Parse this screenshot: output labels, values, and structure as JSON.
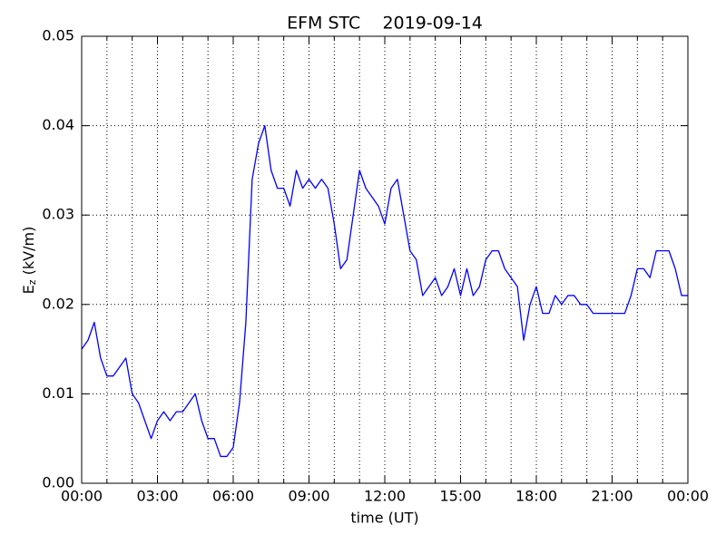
{
  "chart_data": {
    "type": "line",
    "title": "EFM STC    2019-09-14",
    "xlabel": "time (UT)",
    "ylabel": {
      "base": "E",
      "subscript": "z",
      "unit": " (kV/m)"
    },
    "color": "#0000ff",
    "grid": true,
    "xlim": [
      0,
      24
    ],
    "xticks": [
      {
        "value": 0,
        "label": "00:00"
      },
      {
        "value": 3,
        "label": "03:00"
      },
      {
        "value": 6,
        "label": "06:00"
      },
      {
        "value": 9,
        "label": "09:00"
      },
      {
        "value": 12,
        "label": "12:00"
      },
      {
        "value": 15,
        "label": "15:00"
      },
      {
        "value": 18,
        "label": "18:00"
      },
      {
        "value": 21,
        "label": "21:00"
      },
      {
        "value": 24,
        "label": "00:00"
      }
    ],
    "xminorticks": [
      1,
      2,
      4,
      5,
      7,
      8,
      10,
      11,
      13,
      14,
      16,
      17,
      19,
      20,
      22,
      23
    ],
    "ylim": [
      0,
      0.05
    ],
    "yticks": [
      {
        "value": 0,
        "label": "0.00"
      },
      0.01,
      0.02,
      0.03,
      0.04,
      0.05
    ],
    "x": [
      0,
      0.25,
      0.5,
      0.75,
      1,
      1.25,
      1.5,
      1.75,
      2,
      2.25,
      2.5,
      2.75,
      3,
      3.25,
      3.5,
      3.75,
      4,
      4.25,
      4.5,
      4.75,
      5,
      5.25,
      5.5,
      5.75,
      6,
      6.25,
      6.5,
      6.75,
      7,
      7.25,
      7.5,
      7.75,
      8,
      8.25,
      8.5,
      8.75,
      9,
      9.25,
      9.5,
      9.75,
      10,
      10.25,
      10.5,
      10.75,
      11,
      11.25,
      11.5,
      11.75,
      12,
      12.25,
      12.5,
      12.75,
      13,
      13.25,
      13.5,
      13.75,
      14,
      14.25,
      14.5,
      14.75,
      15,
      15.25,
      15.5,
      15.75,
      16,
      16.25,
      16.5,
      16.75,
      17,
      17.25,
      17.5,
      17.75,
      18,
      18.25,
      18.5,
      18.75,
      19,
      19.25,
      19.5,
      19.75,
      20,
      20.25,
      20.5,
      20.75,
      21,
      21.25,
      21.5,
      21.75,
      22,
      22.25,
      22.5,
      22.75,
      23,
      23.25,
      23.5,
      23.75,
      24
    ],
    "values": [
      0.015,
      0.016,
      0.018,
      0.014,
      0.012,
      0.012,
      0.013,
      0.014,
      0.01,
      0.009,
      0.007,
      0.005,
      0.007,
      0.008,
      0.007,
      0.008,
      0.008,
      0.009,
      0.01,
      0.007,
      0.005,
      0.005,
      0.003,
      0.003,
      0.004,
      0.009,
      0.018,
      0.034,
      0.038,
      0.04,
      0.035,
      0.033,
      0.033,
      0.031,
      0.035,
      0.033,
      0.034,
      0.033,
      0.034,
      0.033,
      0.029,
      0.024,
      0.025,
      0.03,
      0.035,
      0.033,
      0.032,
      0.031,
      0.029,
      0.033,
      0.034,
      0.03,
      0.026,
      0.025,
      0.021,
      0.022,
      0.023,
      0.021,
      0.022,
      0.024,
      0.021,
      0.024,
      0.021,
      0.022,
      0.025,
      0.026,
      0.026,
      0.024,
      0.023,
      0.022,
      0.016,
      0.02,
      0.022,
      0.019,
      0.019,
      0.021,
      0.02,
      0.021,
      0.021,
      0.02,
      0.02,
      0.019,
      0.019,
      0.019,
      0.019,
      0.019,
      0.019,
      0.021,
      0.024,
      0.024,
      0.023,
      0.026,
      0.026,
      0.026,
      0.024,
      0.021,
      0.021
    ]
  }
}
